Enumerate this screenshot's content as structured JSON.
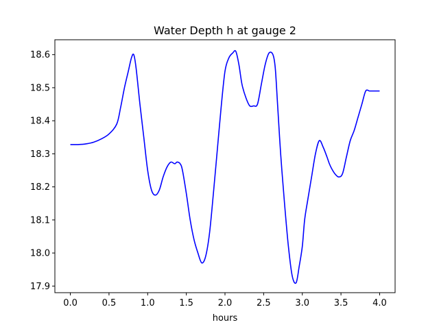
{
  "chart_data": {
    "type": "line",
    "title": "Water Depth h at gauge 2",
    "xlabel": "hours",
    "ylabel": "",
    "xlim": [
      -0.2,
      4.2
    ],
    "ylim": [
      17.88,
      18.645
    ],
    "xticks": [
      0.0,
      0.5,
      1.0,
      1.5,
      2.0,
      2.5,
      3.0,
      3.5,
      4.0
    ],
    "xtick_labels": [
      "0.0",
      "0.5",
      "1.0",
      "1.5",
      "2.0",
      "2.5",
      "3.0",
      "3.5",
      "4.0"
    ],
    "yticks": [
      17.9,
      18.0,
      18.1,
      18.2,
      18.3,
      18.4,
      18.5,
      18.6
    ],
    "ytick_labels": [
      "17.9",
      "18.0",
      "18.1",
      "18.2",
      "18.3",
      "18.4",
      "18.5",
      "18.6"
    ],
    "grid": false,
    "series": [
      {
        "color": "#0000ff",
        "x": [
          0.0,
          0.1,
          0.2,
          0.3,
          0.4,
          0.5,
          0.6,
          0.65,
          0.7,
          0.75,
          0.79,
          0.82,
          0.85,
          0.9,
          0.95,
          1.0,
          1.05,
          1.1,
          1.15,
          1.2,
          1.25,
          1.3,
          1.35,
          1.38,
          1.42,
          1.45,
          1.5,
          1.55,
          1.6,
          1.65,
          1.7,
          1.75,
          1.8,
          1.85,
          1.9,
          1.95,
          2.0,
          2.05,
          2.1,
          2.14,
          2.18,
          2.22,
          2.27,
          2.32,
          2.37,
          2.42,
          2.47,
          2.52,
          2.57,
          2.62,
          2.65,
          2.68,
          2.72,
          2.77,
          2.82,
          2.87,
          2.92,
          2.96,
          3.0,
          3.03,
          3.07,
          3.12,
          3.17,
          3.22,
          3.27,
          3.32,
          3.35,
          3.38,
          3.42,
          3.47,
          3.52,
          3.57,
          3.62,
          3.67,
          3.72,
          3.77,
          3.82,
          3.87,
          3.92,
          3.96,
          4.0
        ],
        "y": [
          18.328,
          18.328,
          18.33,
          18.335,
          18.345,
          18.36,
          18.39,
          18.44,
          18.5,
          18.55,
          18.59,
          18.6,
          18.56,
          18.45,
          18.35,
          18.25,
          18.19,
          18.175,
          18.19,
          18.23,
          18.26,
          18.275,
          18.27,
          18.275,
          18.27,
          18.25,
          18.18,
          18.1,
          18.04,
          18.0,
          17.97,
          17.99,
          18.06,
          18.18,
          18.31,
          18.44,
          18.55,
          18.59,
          18.605,
          18.61,
          18.57,
          18.51,
          18.47,
          18.445,
          18.445,
          18.45,
          18.51,
          18.57,
          18.605,
          18.6,
          18.56,
          18.45,
          18.3,
          18.15,
          18.02,
          17.93,
          17.91,
          17.96,
          18.02,
          18.1,
          18.16,
          18.23,
          18.3,
          18.34,
          18.32,
          18.29,
          18.27,
          18.255,
          18.24,
          18.23,
          18.24,
          18.29,
          18.34,
          18.37,
          18.41,
          18.45,
          18.49,
          18.49,
          18.49,
          18.49,
          18.49
        ]
      }
    ]
  }
}
